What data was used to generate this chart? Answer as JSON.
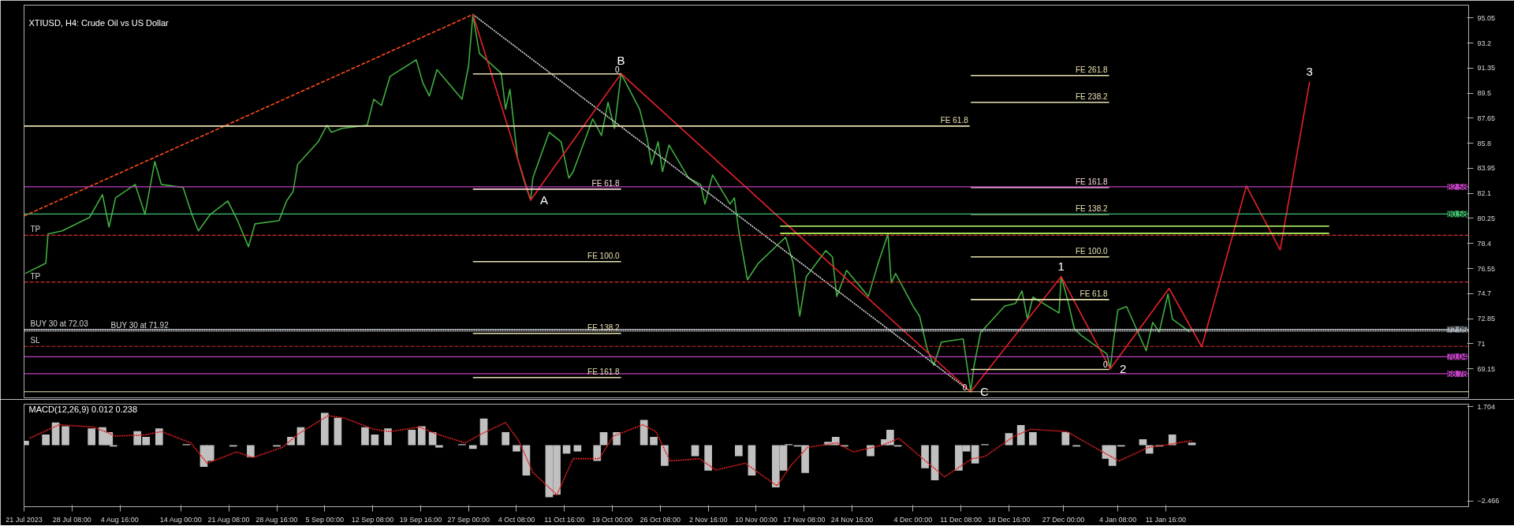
{
  "chart_data": [
    {
      "type": "line",
      "title": "XTIUSD, H4:  Crude Oil vs US Dollar",
      "xlim": [
        "2023-07-21T00:00",
        "2024-02-27T00:00"
      ],
      "ylim": [
        67.0,
        96.0
      ],
      "yticks": [
        95.05,
        93.2,
        91.35,
        89.5,
        87.65,
        85.8,
        83.95,
        82.1,
        80.25,
        78.4,
        76.55,
        74.7,
        72.85,
        71.0,
        69.15
      ],
      "tick_labels": "y",
      "series": [
        {
          "color": "#3fae3f",
          "x": [
            "2023-07-21T04:00",
            "2023-07-24T08:00",
            "2023-07-24T16:00",
            "2023-07-26T20:00",
            "2023-07-31T00:00",
            "2023-08-02T00:00",
            "2023-08-03T00:00",
            "2023-08-04T00:00",
            "2023-08-07T00:00",
            "2023-08-08T12:00",
            "2023-08-10T00:00",
            "2023-08-11T00:00",
            "2023-08-14T08:00",
            "2023-08-15T16:00",
            "2023-08-16T16:00",
            "2023-08-18T12:00",
            "2023-08-21T04:00",
            "2023-08-22T16:00",
            "2023-08-24T08:00",
            "2023-08-25T08:00",
            "2023-08-29T00:00",
            "2023-08-30T04:00",
            "2023-08-31T04:00",
            "2023-08-31T20:00",
            "2023-09-04T00:00",
            "2023-09-05T08:00",
            "2023-09-06T00:00",
            "2023-09-07T16:00",
            "2023-09-11T12:00",
            "2023-09-12T12:00",
            "2023-09-13T16:00",
            "2023-09-15T00:00",
            "2023-09-19T00:00",
            "2023-09-20T00:00",
            "2023-09-21T00:00",
            "2023-09-22T04:00",
            "2023-09-26T00:00",
            "2023-09-27T00:00",
            "2023-09-27T16:00",
            "2023-09-28T16:00",
            "2023-10-02T00:00",
            "2023-10-02T16:00",
            "2023-10-03T08:00",
            "2023-10-04T12:00",
            "2023-10-05T16:00",
            "2023-10-06T12:00",
            "2023-10-06T20:00",
            "2023-10-09T08:00",
            "2023-10-11T04:00",
            "2023-10-12T08:00",
            "2023-10-13T00:00",
            "2023-10-16T00:00",
            "2023-10-17T08:00",
            "2023-10-18T08:00",
            "2023-10-19T08:00",
            "2023-10-20T08:00",
            "2023-10-23T04:00",
            "2023-10-24T08:00",
            "2023-10-25T00:00",
            "2023-10-26T00:00",
            "2023-10-26T16:00",
            "2023-10-27T16:00",
            "2023-10-30T16:00",
            "2023-11-01T12:00",
            "2023-11-02T04:00",
            "2023-11-03T08:00",
            "2023-11-06T00:00",
            "2023-11-06T16:00",
            "2023-11-07T08:00",
            "2023-11-08T16:00",
            "2023-11-10T08:00",
            "2023-11-13T12:00",
            "2023-11-14T12:00",
            "2023-11-15T16:00",
            "2023-11-16T16:00",
            "2023-11-17T16:00",
            "2023-11-20T16:00",
            "2023-11-21T16:00",
            "2023-11-22T08:00",
            "2023-11-23T20:00",
            "2023-11-27T04:00",
            "2023-11-28T16:00",
            "2023-11-30T04:00",
            "2023-11-30T16:00",
            "2023-12-01T08:00",
            "2023-12-04T00:00",
            "2023-12-05T00:00",
            "2023-12-06T04:00",
            "2023-12-07T04:00",
            "2023-12-08T08:00",
            "2023-12-11T16:00",
            "2023-12-12T08:00",
            "2023-12-12T20:00",
            "2023-12-13T08:00",
            "2023-12-14T08:00",
            "2023-12-18T00:00",
            "2023-12-19T16:00",
            "2023-12-20T16:00",
            "2023-12-21T12:00",
            "2023-12-22T08:00",
            "2023-12-26T08:00",
            "2023-12-26T16:00",
            "2023-12-27T16:00",
            "2023-12-28T16:00",
            "2023-12-29T16:00",
            "2024-01-02T16:00",
            "2024-01-03T04:00",
            "2024-01-03T16:00",
            "2024-01-04T08:00",
            "2024-01-05T16:00",
            "2024-01-08T16:00",
            "2024-01-09T16:00",
            "2024-01-10T16:00",
            "2024-01-12T00:00",
            "2024-01-12T16:00",
            "2024-01-15T08:00"
          ],
          "values": [
            76.18,
            76.94,
            79.1,
            79.33,
            80.32,
            82.0,
            79.62,
            81.77,
            82.76,
            80.55,
            84.45,
            82.76,
            82.53,
            80.55,
            79.33,
            80.55,
            81.54,
            80.09,
            78.16,
            79.85,
            80.09,
            81.54,
            82.24,
            84.22,
            85.91,
            87.13,
            86.61,
            86.9,
            87.13,
            89.05,
            88.59,
            90.74,
            91.96,
            90.27,
            89.29,
            91.24,
            89.05,
            91.5,
            95.3,
            92.43,
            90.97,
            88.32,
            89.78,
            84.68,
            82.76,
            81.6,
            83.23,
            86.61,
            85.91,
            83.23,
            83.7,
            87.6,
            86.37,
            88.82,
            86.9,
            90.94,
            88.32,
            86.14,
            84.22,
            85.91,
            83.7,
            85.67,
            83.23,
            82.76,
            81.31,
            83.46,
            81.31,
            81.77,
            79.33,
            75.72,
            76.94,
            78.4,
            78.86,
            76.94,
            73.04,
            75.95,
            77.87,
            77.41,
            74.49,
            76.42,
            74.49,
            76.94,
            79.1,
            75.48,
            76.18,
            73.77,
            73.04,
            70.6,
            69.4,
            71.12,
            71.35,
            69.14,
            67.45,
            69.4,
            71.82,
            73.77,
            73.97,
            74.9,
            72.81,
            74.44,
            73.27,
            75.95,
            74.2,
            72.11,
            71.64,
            70.24,
            69.14,
            71.18,
            73.5,
            73.74,
            70.48,
            72.57,
            71.87,
            74.67,
            72.81,
            71.87
          ]
        },
        {
          "color": "#ff4a1c",
          "line_style": "dashed",
          "x": [
            "2023-07-21T00:00",
            "2023-09-27T16:00"
          ],
          "values": [
            80.43,
            95.31
          ]
        },
        {
          "color": "#dddddd",
          "line_style": "dotted",
          "x": [
            "2023-09-27T16:00",
            "2023-12-12T20:00"
          ],
          "values": [
            95.31,
            67.45
          ]
        },
        {
          "color": "#e8202a",
          "x": [
            "2023-09-27T16:00",
            "2023-10-06T12:00",
            "2023-10-20T08:00",
            "2023-12-12T20:00",
            "2023-12-26T16:00",
            "2024-01-03T04:00",
            "2024-01-12T04:00",
            "2024-01-17T04:00",
            "2024-01-24T00:00",
            "2024-01-29T04:00",
            "2024-02-02T16:00"
          ],
          "values": [
            95.31,
            81.6,
            90.94,
            67.45,
            75.95,
            69.14,
            75.08,
            70.77,
            82.65,
            77.93,
            90.33
          ]
        },
        {
          "color": "#b8ff66",
          "x": [
            "2023-11-13T16:00",
            "2024-02-05T16:00"
          ],
          "values": [
            79.68,
            79.68
          ]
        },
        {
          "color": "#b8ff66",
          "x": [
            "2023-11-13T16:00",
            "2024-02-05T16:00"
          ],
          "values": [
            79.15,
            79.15
          ]
        },
        {
          "color": "#e8e0b0",
          "x": [
            "2023-09-27T16:00",
            "2023-10-20T08:00"
          ],
          "values": [
            90.92,
            90.92
          ]
        },
        {
          "name": "FE 61.8",
          "color": "#ffd8d8",
          "x": [
            "2023-09-27T16:00",
            "2023-10-20T08:00"
          ],
          "values": [
            82.41,
            82.41
          ]
        },
        {
          "name": "FE 100.0",
          "color": "#e8e0b0",
          "x": [
            "2023-09-27T16:00",
            "2023-10-20T08:00"
          ],
          "values": [
            77.06,
            77.06
          ]
        },
        {
          "name": "FE 138.2",
          "color": "#e8e0b0",
          "x": [
            "2023-09-27T16:00",
            "2023-10-20T08:00"
          ],
          "values": [
            71.76,
            71.76
          ]
        },
        {
          "name": "FE 161.8",
          "color": "#e8e0b0",
          "x": [
            "2023-09-27T16:00",
            "2023-10-20T08:00"
          ],
          "values": [
            68.5,
            68.5
          ]
        },
        {
          "name": "FE 61.8",
          "color": "#e8e0b0",
          "x": [
            "2023-07-21T00:00",
            "2023-12-12T16:00"
          ],
          "values": [
            87.07,
            87.07
          ]
        },
        {
          "name": "FE 261.8",
          "color": "#e8e0b0",
          "x": [
            "2023-12-12T20:00",
            "2024-01-03T00:00"
          ],
          "values": [
            90.8,
            90.8
          ]
        },
        {
          "name": "FE 238.2",
          "color": "#e8e0b0",
          "x": [
            "2023-12-12T20:00",
            "2024-01-03T00:00"
          ],
          "values": [
            88.82,
            88.82
          ]
        },
        {
          "name": "FE 161.8",
          "color": "#ffd8d8",
          "x": [
            "2023-12-12T20:00",
            "2024-01-03T00:00"
          ],
          "values": [
            82.53,
            82.53
          ]
        },
        {
          "name": "FE 138.2",
          "color": "#e8e0b0",
          "x": [
            "2023-12-12T20:00",
            "2024-01-03T00:00"
          ],
          "values": [
            80.55,
            80.55
          ]
        },
        {
          "name": "FE 100.0",
          "color": "#e8e0b0",
          "x": [
            "2023-12-12T20:00",
            "2024-01-03T00:00"
          ],
          "values": [
            77.41,
            77.41
          ]
        },
        {
          "name": "FE 61.8",
          "color": "#e8e0b0",
          "x": [
            "2023-12-12T20:00",
            "2024-01-03T00:00"
          ],
          "values": [
            74.26,
            74.26
          ]
        },
        {
          "color": "#e8e0b0",
          "x": [
            "2023-12-12T20:00",
            "2024-01-03T00:00"
          ],
          "values": [
            69.1,
            69.1
          ]
        }
      ],
      "ref_lines": [
        {
          "axis": "y",
          "value": 82.58,
          "label": "82.58",
          "color": "#c040c0"
        },
        {
          "axis": "y",
          "value": 80.58,
          "label": "80.58",
          "color": "#40c070"
        },
        {
          "axis": "y",
          "value": 79.0,
          "label": "TP",
          "color": "#d03030",
          "line_style": "dashed"
        },
        {
          "axis": "y",
          "value": 75.55,
          "label": "TP",
          "color": "#d03030",
          "line_style": "dashed"
        },
        {
          "axis": "y",
          "value": 72.05,
          "label": "72.05",
          "color": "#8a96a0"
        },
        {
          "axis": "y",
          "value": 72.03,
          "label": "BUY 30 at 72.03",
          "color": "#dddddd",
          "line_style": "dotted"
        },
        {
          "axis": "y",
          "value": 71.92,
          "label": "BUY 30 at 71.92",
          "color": "#dddddd",
          "line_style": "dotted"
        },
        {
          "axis": "y",
          "value": 70.8,
          "label": "SL",
          "color": "#d03030",
          "line_style": "dashed"
        },
        {
          "axis": "y",
          "value": 70.04,
          "label": "70.04",
          "color": "#c040c0"
        },
        {
          "axis": "y",
          "value": 68.78,
          "label": "68.78",
          "color": "#c040c0"
        },
        {
          "axis": "y",
          "value": 67.45,
          "color": "#e8e0b0"
        }
      ],
      "annotations": [
        {
          "text": "A",
          "x": "2023-10-06T12:00",
          "y": 81.6
        },
        {
          "text": "B",
          "x": "2023-10-20T08:00",
          "y": 90.94
        },
        {
          "text": "C",
          "x": "2023-12-12T20:00",
          "y": 67.45
        },
        {
          "text": "1",
          "x": "2023-12-26T16:00",
          "y": 75.95
        },
        {
          "text": "2",
          "x": "2024-01-03T04:00",
          "y": 69.14
        },
        {
          "text": "3",
          "x": "2024-02-02T16:00",
          "y": 90.33
        },
        {
          "text": "0",
          "x": "2023-10-20T08:00",
          "y": 90.92
        },
        {
          "text": "0",
          "x": "2023-12-12T12:00",
          "y": 67.45
        },
        {
          "text": "0",
          "x": "2024-01-03T00:00",
          "y": 69.1
        }
      ]
    },
    {
      "type": "bar",
      "title": "MACD(12,26,9) 0.012 0.238",
      "xlim": [
        "2023-07-21T00:00",
        "2024-02-27T00:00"
      ],
      "ylim": [
        -2.72,
        1.81
      ],
      "xticks": [
        {
          "value": "2023-07-21T00:00",
          "label": "21 Jul 2023"
        },
        {
          "value": "2023-07-28T08:00",
          "label": "28 Jul 08:00"
        },
        {
          "value": "2023-08-04T16:00",
          "label": "4 Aug 16:00"
        },
        {
          "value": "2023-08-14T00:00",
          "label": "14 Aug 00:00"
        },
        {
          "value": "2023-08-21T08:00",
          "label": "21 Aug 08:00"
        },
        {
          "value": "2023-08-28T16:00",
          "label": "28 Aug 16:00"
        },
        {
          "value": "2023-09-05T00:00",
          "label": "5 Sep 00:00"
        },
        {
          "value": "2023-09-12T08:00",
          "label": "12 Sep 08:00"
        },
        {
          "value": "2023-09-19T16:00",
          "label": "19 Sep 16:00"
        },
        {
          "value": "2023-09-27T00:00",
          "label": "27 Sep 00:00"
        },
        {
          "value": "2023-10-04T08:00",
          "label": "4 Oct 08:00"
        },
        {
          "value": "2023-10-11T16:00",
          "label": "11 Oct 16:00"
        },
        {
          "value": "2023-10-19T00:00",
          "label": "19 Oct 00:00"
        },
        {
          "value": "2023-10-26T08:00",
          "label": "26 Oct 08:00"
        },
        {
          "value": "2023-11-02T16:00",
          "label": "2 Nov 16:00"
        },
        {
          "value": "2023-11-10T00:00",
          "label": "10 Nov 00:00"
        },
        {
          "value": "2023-11-17T08:00",
          "label": "17 Nov 08:00"
        },
        {
          "value": "2023-11-24T16:00",
          "label": "24 Nov 16:00"
        },
        {
          "value": "2023-12-04T00:00",
          "label": "4 Dec 00:00"
        },
        {
          "value": "2023-12-11T08:00",
          "label": "11 Dec 08:00"
        },
        {
          "value": "2023-12-18T16:00",
          "label": "18 Dec 16:00"
        },
        {
          "value": "2023-12-27T00:00",
          "label": "27 Dec 00:00"
        },
        {
          "value": "2024-01-04T08:00",
          "label": "4 Jan 08:00"
        },
        {
          "value": "2024-01-11T16:00",
          "label": "11 Jan 16:00"
        }
      ],
      "yticks": [
        1.704,
        -2.466
      ],
      "series": [
        {
          "color": "#c0c0c0",
          "x": [
            "2023-07-21T04:00",
            "2023-07-24T08:00",
            "2023-07-25T20:00",
            "2023-07-27T08:00",
            "2023-07-31T08:00",
            "2023-08-02T00:00",
            "2023-08-03T00:00",
            "2023-08-03T16:00",
            "2023-08-07T08:00",
            "2023-08-08T16:00",
            "2023-08-10T16:00",
            "2023-08-14T20:00",
            "2023-08-17T12:00",
            "2023-08-18T12:00",
            "2023-08-22T00:00",
            "2023-08-24T16:00",
            "2023-08-28T16:00",
            "2023-08-30T20:00",
            "2023-09-01T08:00",
            "2023-09-05T00:00",
            "2023-09-07T00:00",
            "2023-09-11T04:00",
            "2023-09-12T16:00",
            "2023-09-14T16:00",
            "2023-09-18T08:00",
            "2023-09-19T20:00",
            "2023-09-21T12:00",
            "2023-09-22T12:00",
            "2023-09-26T00:00",
            "2023-09-27T16:00",
            "2023-09-29T08:00",
            "2023-10-02T16:00",
            "2023-10-04T08:00",
            "2023-10-05T20:00",
            "2023-10-09T08:00",
            "2023-10-10T12:00",
            "2023-10-12T00:00",
            "2023-10-13T16:00",
            "2023-10-16T16:00",
            "2023-10-17T16:00",
            "2023-10-19T16:00",
            "2023-10-23T20:00",
            "2023-10-25T08:00",
            "2023-10-27T00:00",
            "2023-10-31T16:00",
            "2023-11-02T16:00",
            "2023-11-07T08:00",
            "2023-11-09T08:00",
            "2023-11-13T00:00",
            "2023-11-14T04:00",
            "2023-11-15T00:00",
            "2023-11-16T08:00",
            "2023-11-17T12:00",
            "2023-11-21T00:00",
            "2023-11-22T04:00",
            "2023-11-23T12:00",
            "2023-11-27T12:00",
            "2023-11-29T16:00",
            "2023-11-30T12:00",
            "2023-12-01T16:00",
            "2023-12-05T20:00",
            "2023-12-07T08:00",
            "2023-12-11T00:00",
            "2023-12-12T04:00",
            "2023-12-13T12:00",
            "2023-12-15T00:00",
            "2023-12-18T16:00",
            "2023-12-20T12:00",
            "2023-12-22T08:00",
            "2023-12-27T08:00",
            "2023-12-29T00:00",
            "2024-01-02T12:00",
            "2024-01-03T12:00",
            "2024-01-04T20:00",
            "2024-01-08T04:00",
            "2024-01-09T04:00",
            "2024-01-10T16:00",
            "2024-01-12T16:00",
            "2024-01-15T16:00"
          ],
          "values": [
            0.19,
            0.47,
            1.0,
            0.83,
            0.74,
            0.79,
            0.57,
            -0.06,
            0.62,
            0.36,
            0.74,
            0.04,
            -0.96,
            -0.7,
            -0.06,
            -0.53,
            -0.06,
            0.36,
            0.79,
            1.43,
            1.21,
            0.79,
            0.47,
            0.74,
            0.68,
            0.83,
            0.57,
            -0.11,
            0.04,
            -0.17,
            1.17,
            0.57,
            -0.28,
            -1.34,
            -2.3,
            -2.19,
            -0.38,
            -0.28,
            -0.7,
            0.57,
            0.57,
            1.11,
            0.36,
            -0.92,
            -0.49,
            -1.13,
            -0.49,
            -1.34,
            -1.87,
            -1.13,
            0.04,
            -0.06,
            -1.23,
            0.15,
            0.36,
            -0.06,
            -0.49,
            0.26,
            0.68,
            -0.06,
            -1.02,
            -1.55,
            -1.13,
            -0.28,
            -0.81,
            0.04,
            0.53,
            0.89,
            0.57,
            0.57,
            -0.06,
            -0.6,
            -0.92,
            -0.06,
            0.26,
            -0.38,
            -0.06,
            0.47,
            0.11
          ]
        },
        {
          "type": "line",
          "color": "#e02020",
          "line_style": "dotted",
          "x": [
            "2023-07-21T20:00",
            "2023-07-26T08:00",
            "2023-07-31T16:00",
            "2023-08-04T00:00",
            "2023-08-08T12:00",
            "2023-08-11T00:00",
            "2023-08-15T12:00",
            "2023-08-18T00:00",
            "2023-08-22T12:00",
            "2023-08-25T00:00",
            "2023-08-29T12:00",
            "2023-09-01T00:00",
            "2023-09-05T12:00",
            "2023-09-08T00:00",
            "2023-09-12T12:00",
            "2023-09-15T00:00",
            "2023-09-19T12:00",
            "2023-09-22T00:00",
            "2023-09-26T12:00",
            "2023-09-29T00:00",
            "2023-10-02T16:00",
            "2023-10-04T16:00",
            "2023-10-06T20:00",
            "2023-10-10T12:00",
            "2023-10-13T00:00",
            "2023-10-17T00:00",
            "2023-10-19T04:00",
            "2023-10-23T16:00",
            "2023-10-25T16:00",
            "2023-10-27T20:00",
            "2023-11-01T08:00",
            "2023-11-03T20:00",
            "2023-11-08T08:00",
            "2023-11-13T04:00",
            "2023-11-15T08:00",
            "2023-11-17T20:00",
            "2023-11-22T08:00",
            "2023-11-24T20:00",
            "2023-11-29T08:00",
            "2023-12-01T20:00",
            "2023-12-06T08:00",
            "2023-12-08T20:00",
            "2023-12-13T00:00",
            "2023-12-15T00:00",
            "2023-12-19T12:00",
            "2023-12-22T00:00",
            "2023-12-27T12:00",
            "2024-01-02T00:00",
            "2024-01-04T12:00",
            "2024-01-09T00:00",
            "2024-01-11T12:00",
            "2024-01-15T16:00"
          ],
          "values": [
            0.3,
            0.9,
            0.8,
            0.4,
            0.45,
            0.6,
            0.1,
            -0.8,
            -0.3,
            -0.55,
            -0.1,
            0.5,
            1.3,
            1.2,
            0.7,
            0.6,
            0.8,
            0.5,
            0.1,
            0.5,
            1.0,
            0.2,
            -1.2,
            -2.2,
            -0.6,
            -0.6,
            0.4,
            0.9,
            0.6,
            -0.7,
            -0.6,
            -1.1,
            -0.8,
            -1.8,
            -0.9,
            -0.1,
            0.1,
            -0.3,
            0.0,
            0.3,
            -0.8,
            -1.4,
            -0.6,
            -0.5,
            0.4,
            0.7,
            0.6,
            -0.3,
            -0.7,
            -0.1,
            0.0,
            0.2
          ]
        }
      ]
    }
  ]
}
